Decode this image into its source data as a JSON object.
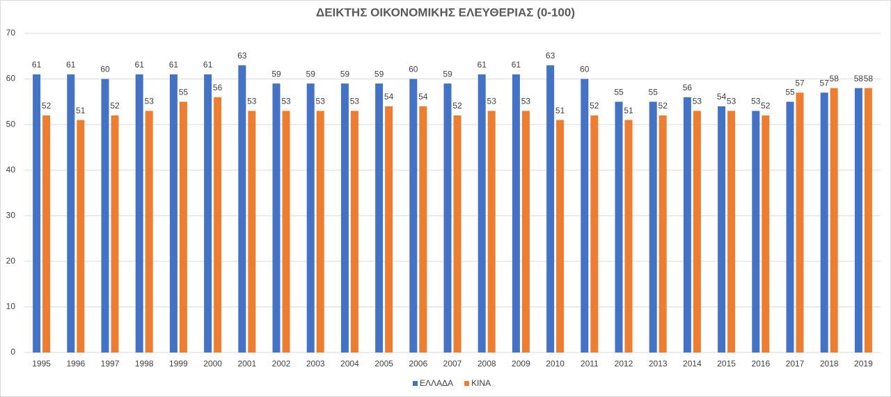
{
  "chart_data": {
    "type": "bar",
    "title": "ΔΕΙΚΤΗΣ ΟΙΚΟΝΟΜΙΚΗΣ ΕΛΕΥΘΕΡΙΑΣ (0-100)",
    "categories": [
      "1995",
      "1996",
      "1997",
      "1998",
      "1999",
      "2000",
      "2001",
      "2002",
      "2003",
      "2004",
      "2005",
      "2006",
      "2007",
      "2008",
      "2009",
      "2010",
      "2011",
      "2012",
      "2013",
      "2014",
      "2015",
      "2016",
      "2017",
      "2018",
      "2019"
    ],
    "series": [
      {
        "name": "ΕΛΛΑΔΑ",
        "color": "#4472c4",
        "values": [
          61,
          61,
          60,
          61,
          61,
          61,
          63,
          59,
          59,
          59,
          59,
          60,
          59,
          61,
          61,
          63,
          60,
          55,
          55,
          56,
          54,
          53,
          55,
          57,
          58
        ]
      },
      {
        "name": "ΚΙΝΑ",
        "color": "#ed7d31",
        "values": [
          52,
          51,
          52,
          53,
          55,
          56,
          53,
          53,
          53,
          53,
          54,
          54,
          52,
          53,
          53,
          51,
          52,
          51,
          52,
          53,
          53,
          52,
          57,
          58,
          58
        ]
      }
    ],
    "ylim": [
      0,
      70
    ],
    "yticks": [
      0,
      10,
      20,
      30,
      40,
      50,
      60,
      70
    ],
    "grid": true,
    "data_labels": true,
    "legend": "bottom"
  }
}
